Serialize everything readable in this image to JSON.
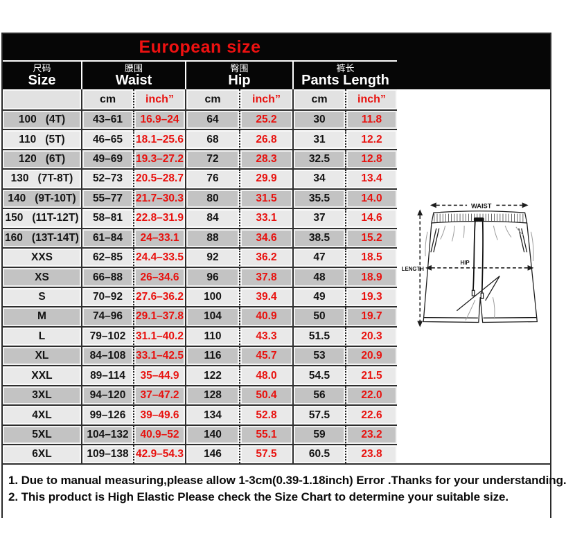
{
  "chart_data": {
    "type": "table",
    "title": "European size",
    "column_groups": [
      {
        "zh": "尺码",
        "en": "Size"
      },
      {
        "zh": "腰围",
        "en": "Waist"
      },
      {
        "zh": "臀围",
        "en": "Hip"
      },
      {
        "zh": "裤长",
        "en": "Pants Length"
      }
    ],
    "unit_headers": [
      "cm",
      "inch”",
      "cm",
      "inch”",
      "cm",
      "inch”"
    ],
    "rows": [
      {
        "size": "100",
        "size_tag": "(4T)",
        "waist_cm": "43–61",
        "waist_inch": "16.9–24",
        "hip_cm": "64",
        "hip_inch": "25.2",
        "length_cm": "30",
        "length_inch": "11.8"
      },
      {
        "size": "110",
        "size_tag": "(5T)",
        "waist_cm": "46–65",
        "waist_inch": "18.1–25.6",
        "hip_cm": "68",
        "hip_inch": "26.8",
        "length_cm": "31",
        "length_inch": "12.2"
      },
      {
        "size": "120",
        "size_tag": "(6T)",
        "waist_cm": "49–69",
        "waist_inch": "19.3–27.2",
        "hip_cm": "72",
        "hip_inch": "28.3",
        "length_cm": "32.5",
        "length_inch": "12.8"
      },
      {
        "size": "130",
        "size_tag": "(7T-8T)",
        "waist_cm": "52–73",
        "waist_inch": "20.5–28.7",
        "hip_cm": "76",
        "hip_inch": "29.9",
        "length_cm": "34",
        "length_inch": "13.4"
      },
      {
        "size": "140",
        "size_tag": "(9T-10T)",
        "waist_cm": "55–77",
        "waist_inch": "21.7–30.3",
        "hip_cm": "80",
        "hip_inch": "31.5",
        "length_cm": "35.5",
        "length_inch": "14.0"
      },
      {
        "size": "150",
        "size_tag": "(11T-12T)",
        "waist_cm": "58–81",
        "waist_inch": "22.8–31.9",
        "hip_cm": "84",
        "hip_inch": "33.1",
        "length_cm": "37",
        "length_inch": "14.6"
      },
      {
        "size": "160",
        "size_tag": "(13T-14T)",
        "waist_cm": "61–84",
        "waist_inch": "24–33.1",
        "hip_cm": "88",
        "hip_inch": "34.6",
        "length_cm": "38.5",
        "length_inch": "15.2"
      },
      {
        "size": "XXS",
        "size_tag": "",
        "waist_cm": "62–85",
        "waist_inch": "24.4–33.5",
        "hip_cm": "92",
        "hip_inch": "36.2",
        "length_cm": "47",
        "length_inch": "18.5"
      },
      {
        "size": "XS",
        "size_tag": "",
        "waist_cm": "66–88",
        "waist_inch": "26–34.6",
        "hip_cm": "96",
        "hip_inch": "37.8",
        "length_cm": "48",
        "length_inch": "18.9"
      },
      {
        "size": "S",
        "size_tag": "",
        "waist_cm": "70–92",
        "waist_inch": "27.6–36.2",
        "hip_cm": "100",
        "hip_inch": "39.4",
        "length_cm": "49",
        "length_inch": "19.3"
      },
      {
        "size": "M",
        "size_tag": "",
        "waist_cm": "74–96",
        "waist_inch": "29.1–37.8",
        "hip_cm": "104",
        "hip_inch": "40.9",
        "length_cm": "50",
        "length_inch": "19.7"
      },
      {
        "size": "L",
        "size_tag": "",
        "waist_cm": "79–102",
        "waist_inch": "31.1–40.2",
        "hip_cm": "110",
        "hip_inch": "43.3",
        "length_cm": "51.5",
        "length_inch": "20.3"
      },
      {
        "size": "XL",
        "size_tag": "",
        "waist_cm": "84–108",
        "waist_inch": "33.1–42.5",
        "hip_cm": "116",
        "hip_inch": "45.7",
        "length_cm": "53",
        "length_inch": "20.9"
      },
      {
        "size": "XXL",
        "size_tag": "",
        "waist_cm": "89–114",
        "waist_inch": "35–44.9",
        "hip_cm": "122",
        "hip_inch": "48.0",
        "length_cm": "54.5",
        "length_inch": "21.5"
      },
      {
        "size": "3XL",
        "size_tag": "",
        "waist_cm": "94–120",
        "waist_inch": "37–47.2",
        "hip_cm": "128",
        "hip_inch": "50.4",
        "length_cm": "56",
        "length_inch": "22.0"
      },
      {
        "size": "4XL",
        "size_tag": "",
        "waist_cm": "99–126",
        "waist_inch": "39–49.6",
        "hip_cm": "134",
        "hip_inch": "52.8",
        "length_cm": "57.5",
        "length_inch": "22.6"
      },
      {
        "size": "5XL",
        "size_tag": "",
        "waist_cm": "104–132",
        "waist_inch": "40.9–52",
        "hip_cm": "140",
        "hip_inch": "55.1",
        "length_cm": "59",
        "length_inch": "23.2"
      },
      {
        "size": "6XL",
        "size_tag": "",
        "waist_cm": "109–138",
        "waist_inch": "42.9–54.3",
        "hip_cm": "146",
        "hip_inch": "57.5",
        "length_cm": "60.5",
        "length_inch": "23.8"
      }
    ],
    "notes": [
      "1. Due to manual measuring,please allow 1-3cm(0.39-1.18inch) Error .Thanks for your understanding.",
      "2. This product is High Elastic Please check the Size Chart to determine your suitable size."
    ],
    "legend_position": "none",
    "grid": true
  },
  "diagram": {
    "waist": "WAIST",
    "hip": "HIP",
    "length": "LENGTH"
  },
  "colors": {
    "title_red": "#ee1111",
    "value_red": "#e8110e",
    "header_bg": "#060606",
    "row_dark": "#c3c3c3",
    "row_light": "#e9e9e9",
    "border_dark": "#2e2e2e"
  }
}
